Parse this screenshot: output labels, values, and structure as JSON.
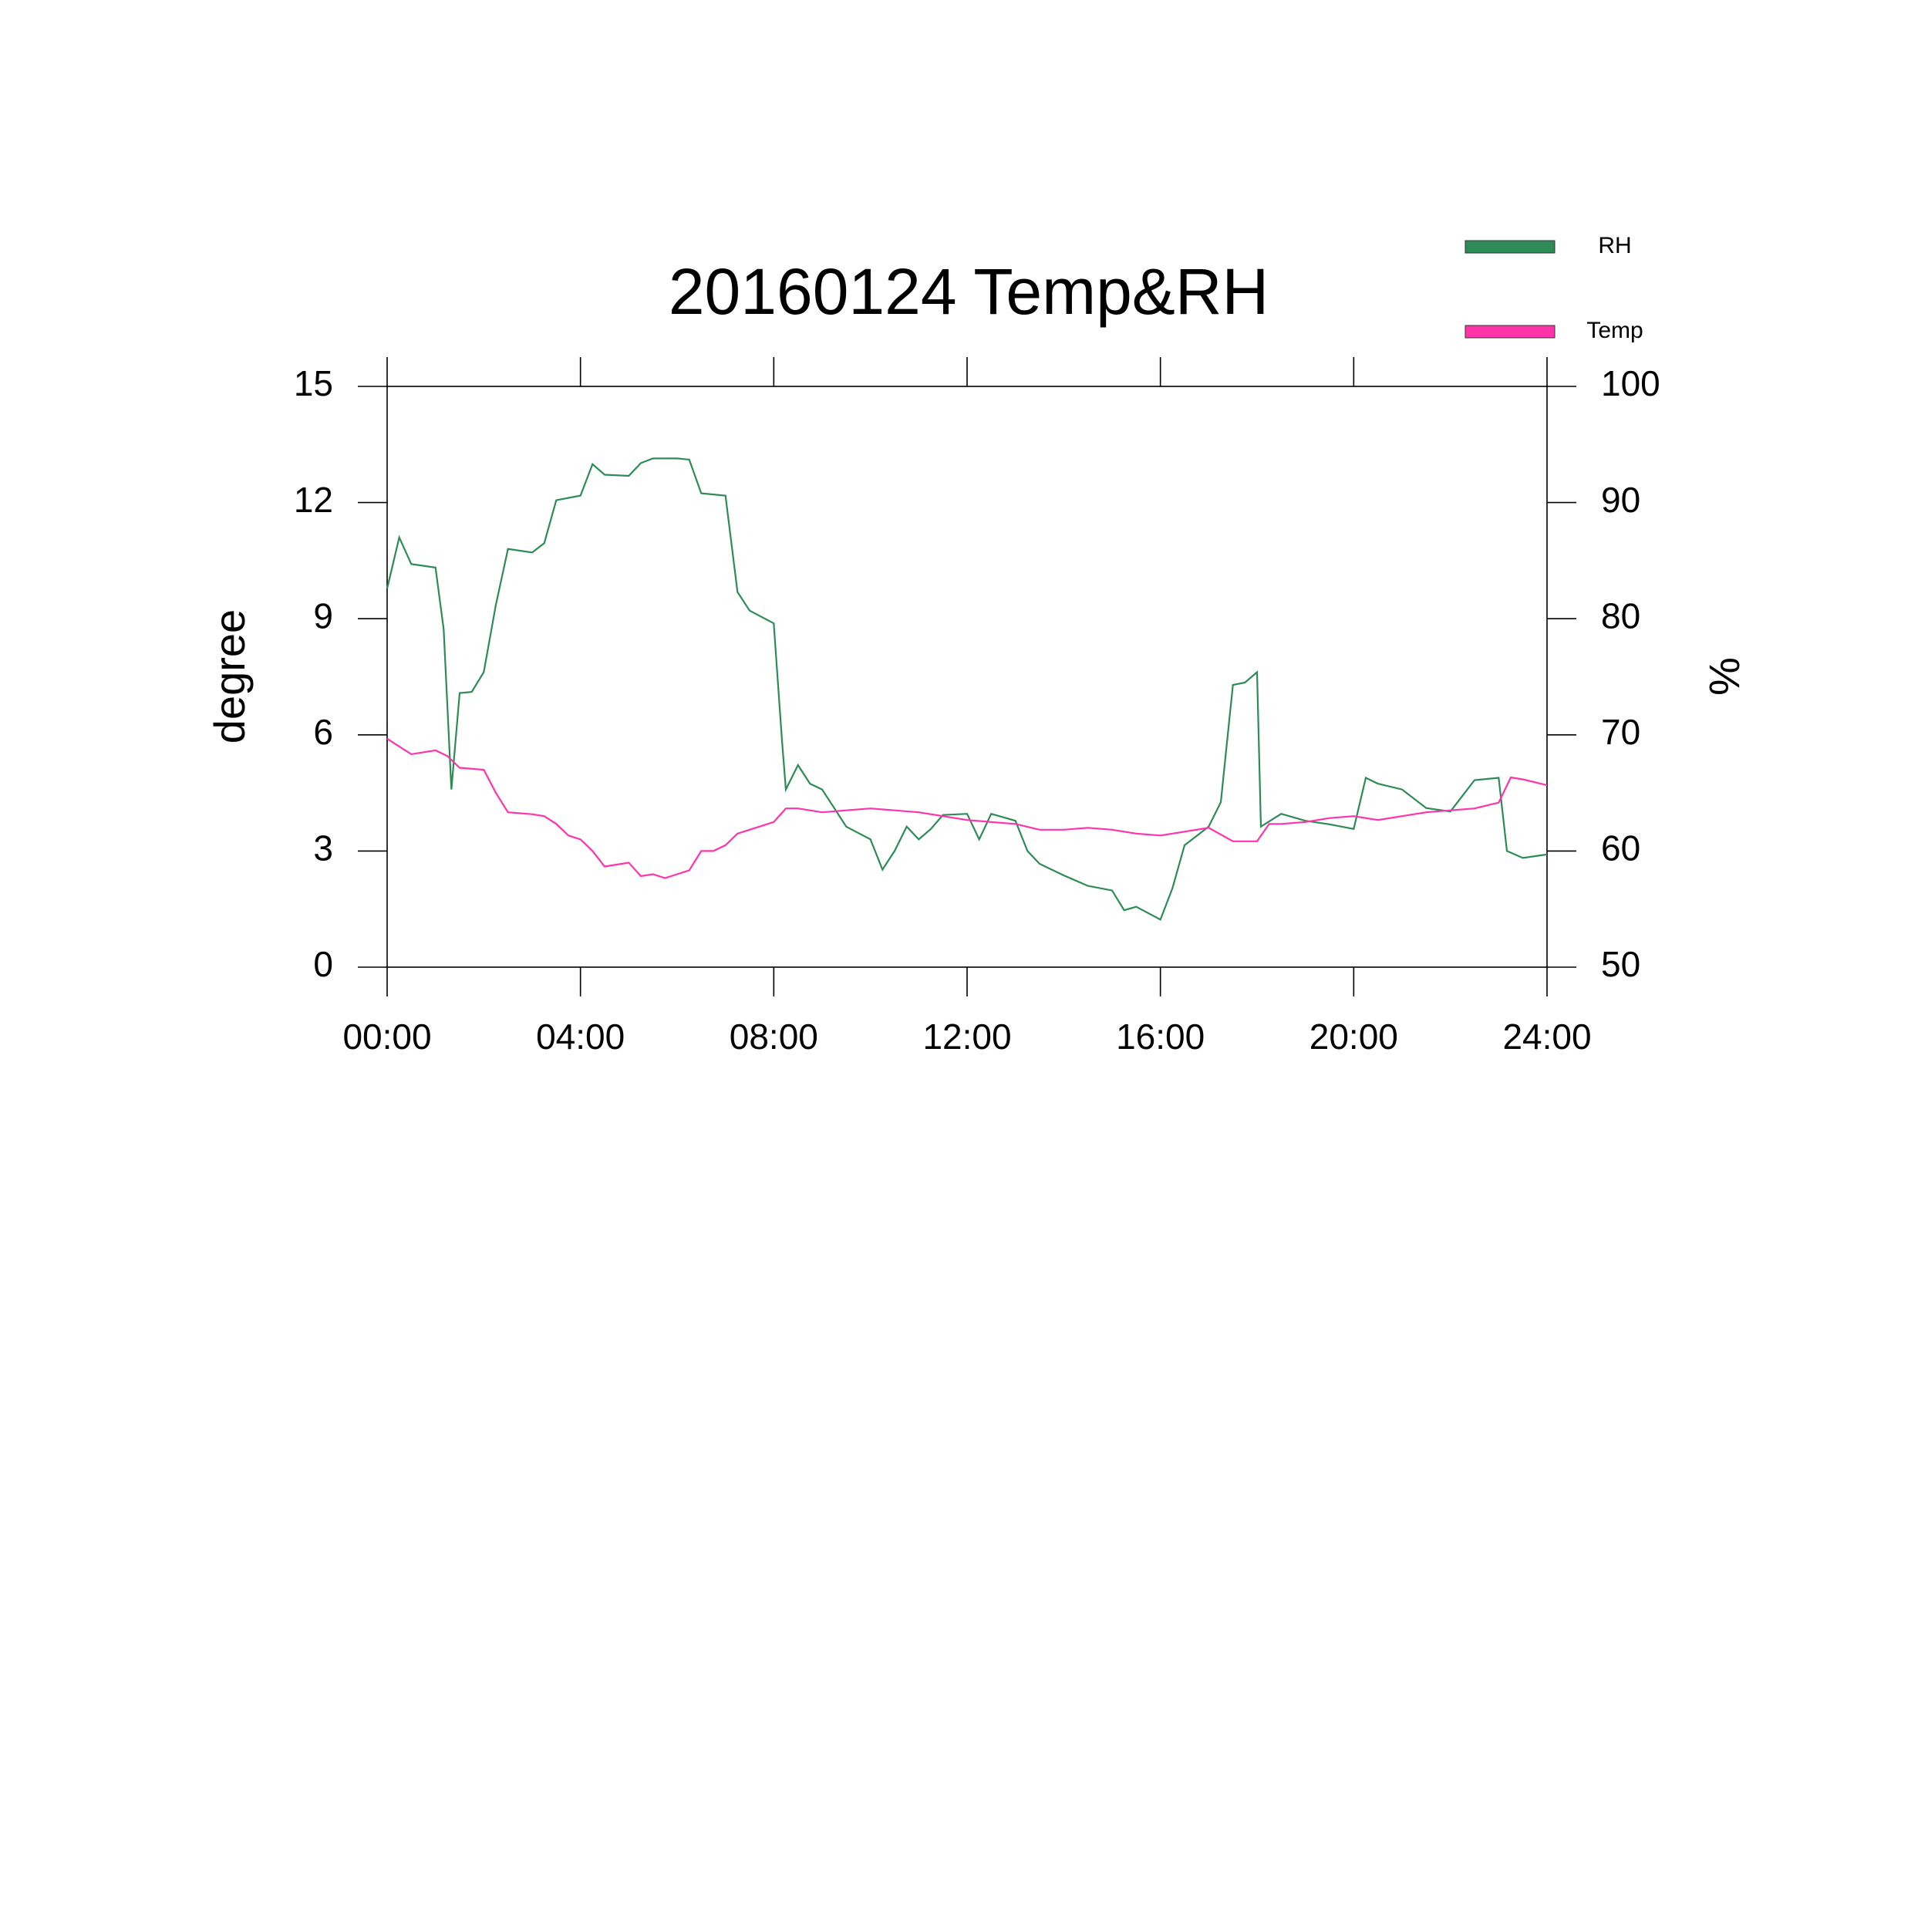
{
  "chart_data": {
    "type": "line",
    "title": "20160124 Temp&RH",
    "y_label": "degree",
    "y2_label": "%",
    "xlim": [
      0,
      24
    ],
    "xticks": [
      {
        "value": 0,
        "label": "00:00"
      },
      {
        "value": 4,
        "label": "04:00"
      },
      {
        "value": 8,
        "label": "08:00"
      },
      {
        "value": 12,
        "label": "12:00"
      },
      {
        "value": 16,
        "label": "16:00"
      },
      {
        "value": 20,
        "label": "20:00"
      },
      {
        "value": 24,
        "label": "24:00"
      }
    ],
    "ylim": [
      0,
      15
    ],
    "yticks": [
      0,
      3,
      6,
      9,
      12,
      15
    ],
    "y2lim": [
      50,
      100
    ],
    "y2ticks": [
      50,
      60,
      70,
      80,
      90,
      100
    ],
    "legend": "top-right",
    "series": [
      {
        "name": "RH",
        "color": "#2e8b57",
        "axis": "y2",
        "x": [
          0,
          0.25,
          0.5,
          1,
          1.17,
          1.33,
          1.5,
          1.75,
          2,
          2.25,
          2.5,
          3,
          3.25,
          3.5,
          4,
          4.25,
          4.5,
          5,
          5.25,
          5.5,
          6,
          6.25,
          6.5,
          7,
          7.25,
          7.5,
          8,
          8.17,
          8.25,
          8.5,
          8.75,
          9,
          9.25,
          9.5,
          10,
          10.25,
          10.5,
          10.75,
          11,
          11.25,
          11.5,
          12,
          12.25,
          12.5,
          13,
          13.25,
          13.5,
          14,
          14.5,
          15,
          15.25,
          15.5,
          16,
          16.25,
          16.5,
          17,
          17.25,
          17.5,
          17.75,
          18,
          18.08,
          18.5,
          19,
          19.5,
          20,
          20.25,
          20.5,
          21,
          21.5,
          22,
          22.5,
          23,
          23.17,
          23.5,
          24
        ],
        "values": [
          82.6,
          87,
          84.7,
          84.4,
          79.1,
          65.3,
          73.6,
          73.7,
          75.4,
          81.2,
          86,
          85.7,
          86.5,
          90.2,
          90.6,
          93.3,
          92.4,
          92.3,
          93.4,
          93.8,
          93.8,
          93.7,
          90.8,
          90.6,
          82.3,
          80.7,
          79.6,
          69.5,
          65.3,
          67.4,
          65.8,
          65.3,
          63.7,
          62.1,
          61,
          58.4,
          60,
          62.1,
          61,
          61.9,
          63.1,
          63.2,
          61,
          63.2,
          62.6,
          60,
          58.9,
          57.9,
          57,
          56.6,
          54.9,
          55.2,
          54.1,
          56.8,
          60.5,
          62.1,
          64.2,
          74.3,
          74.5,
          75.4,
          62.1,
          63.2,
          62.6,
          62.3,
          61.9,
          66.3,
          65.8,
          65.3,
          63.7,
          63.4,
          66.1,
          66.3,
          60,
          59.4,
          59.7
        ]
      },
      {
        "name": "Temp",
        "color": "#ff33aa",
        "x": [
          0,
          0.5,
          1,
          1.25,
          1.5,
          2,
          2.25,
          2.5,
          3,
          3.25,
          3.5,
          3.75,
          4,
          4.25,
          4.5,
          4.75,
          5,
          5.25,
          5.5,
          5.75,
          6,
          6.25,
          6.5,
          6.75,
          7,
          7.25,
          7.5,
          7.75,
          8,
          8.25,
          8.5,
          9,
          9.5,
          10,
          10.5,
          11,
          11.5,
          12,
          12.5,
          13,
          13.5,
          14,
          14.5,
          15,
          15.5,
          16,
          16.5,
          17,
          17.5,
          18,
          18.25,
          18.5,
          19,
          19.5,
          20,
          20.5,
          21,
          21.5,
          22,
          22.5,
          23,
          23.25,
          23.5,
          24
        ],
        "values": [
          5.9,
          5.5,
          5.6,
          5.45,
          5.15,
          5.1,
          4.5,
          4.0,
          3.95,
          3.9,
          3.7,
          3.4,
          3.3,
          3.0,
          2.6,
          2.65,
          2.7,
          2.35,
          2.4,
          2.3,
          2.4,
          2.5,
          3.0,
          3.0,
          3.15,
          3.45,
          3.55,
          3.65,
          3.75,
          4.1,
          4.1,
          4.0,
          4.05,
          4.1,
          4.05,
          4.0,
          3.9,
          3.8,
          3.75,
          3.7,
          3.55,
          3.55,
          3.6,
          3.55,
          3.45,
          3.4,
          3.5,
          3.6,
          3.25,
          3.25,
          3.7,
          3.7,
          3.75,
          3.85,
          3.9,
          3.8,
          3.9,
          4.0,
          4.05,
          4.1,
          4.25,
          4.9,
          4.85,
          4.7
        ]
      }
    ]
  }
}
